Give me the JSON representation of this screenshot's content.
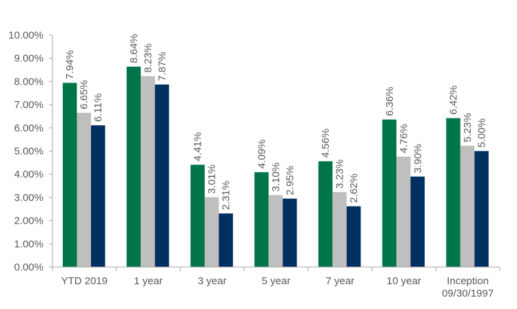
{
  "chart_data": {
    "type": "bar",
    "categories": [
      [
        "YTD 2019"
      ],
      [
        "1 year"
      ],
      [
        "3 year"
      ],
      [
        "5 year"
      ],
      [
        "7 year"
      ],
      [
        "10 year"
      ],
      [
        "Inception",
        "09/30/1997"
      ]
    ],
    "series": [
      {
        "values": [
          7.94,
          8.64,
          4.41,
          4.09,
          4.56,
          6.36,
          6.42
        ],
        "labels": [
          "7.94%",
          "8.64%",
          "4.41%",
          "4.09%",
          "4.56%",
          "6.36%",
          "6.42%"
        ],
        "color": "#00754a"
      },
      {
        "values": [
          6.65,
          8.23,
          3.01,
          3.1,
          3.23,
          4.76,
          5.23
        ],
        "labels": [
          "6.65%",
          "8.23%",
          "3.01%",
          "3.10%",
          "3.23%",
          "4.76%",
          "5.23%"
        ],
        "color": "#bfbfbf"
      },
      {
        "values": [
          6.11,
          7.87,
          2.31,
          2.95,
          2.62,
          3.9,
          5.0
        ],
        "labels": [
          "6.11%",
          "7.87%",
          "2.31%",
          "2.95%",
          "2.62%",
          "3.90%",
          "5.00%"
        ],
        "color": "#00305f"
      }
    ],
    "y_ticks": [
      "0.00%",
      "1.00%",
      "2.00%",
      "3.00%",
      "4.00%",
      "5.00%",
      "6.00%",
      "7.00%",
      "8.00%",
      "9.00%",
      "10.00%"
    ],
    "ylim": [
      0,
      10
    ],
    "grid": false,
    "title": "",
    "xlabel": "",
    "ylabel": ""
  }
}
